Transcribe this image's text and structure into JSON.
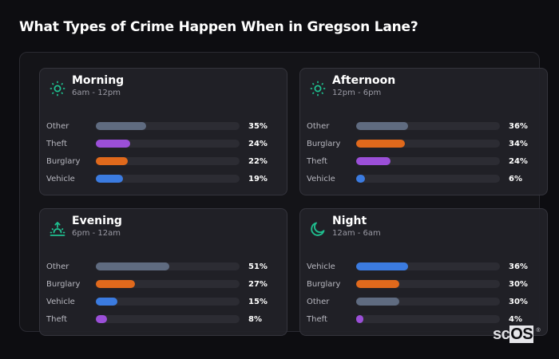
{
  "header": {
    "title": "What Types of Crime Happen When in Gregson Lane?"
  },
  "colors": {
    "other": "#5f6b80",
    "theft": "#9b4fd8",
    "burglary": "#e0691c",
    "vehicle": "#3b7be0",
    "icon_accent": "#1fbf8f",
    "track": "#2c2c33"
  },
  "cards": [
    {
      "title": "Morning",
      "subtitle": "6am - 12pm",
      "icon": "sun-icon",
      "rows": [
        {
          "label": "Other",
          "value": 35,
          "display": "35%",
          "color": "#5f6b80"
        },
        {
          "label": "Theft",
          "value": 24,
          "display": "24%",
          "color": "#9b4fd8"
        },
        {
          "label": "Burglary",
          "value": 22,
          "display": "22%",
          "color": "#e0691c"
        },
        {
          "label": "Vehicle",
          "value": 19,
          "display": "19%",
          "color": "#3b7be0"
        }
      ]
    },
    {
      "title": "Afternoon",
      "subtitle": "12pm - 6pm",
      "icon": "sun-icon",
      "rows": [
        {
          "label": "Other",
          "value": 36,
          "display": "36%",
          "color": "#5f6b80"
        },
        {
          "label": "Burglary",
          "value": 34,
          "display": "34%",
          "color": "#e0691c"
        },
        {
          "label": "Theft",
          "value": 24,
          "display": "24%",
          "color": "#9b4fd8"
        },
        {
          "label": "Vehicle",
          "value": 6,
          "display": "6%",
          "color": "#3b7be0"
        }
      ]
    },
    {
      "title": "Evening",
      "subtitle": "6pm - 12am",
      "icon": "sunset-icon",
      "rows": [
        {
          "label": "Other",
          "value": 51,
          "display": "51%",
          "color": "#5f6b80"
        },
        {
          "label": "Burglary",
          "value": 27,
          "display": "27%",
          "color": "#e0691c"
        },
        {
          "label": "Vehicle",
          "value": 15,
          "display": "15%",
          "color": "#3b7be0"
        },
        {
          "label": "Theft",
          "value": 8,
          "display": "8%",
          "color": "#9b4fd8"
        }
      ]
    },
    {
      "title": "Night",
      "subtitle": "12am - 6am",
      "icon": "moon-icon",
      "rows": [
        {
          "label": "Vehicle",
          "value": 36,
          "display": "36%",
          "color": "#3b7be0"
        },
        {
          "label": "Burglary",
          "value": 30,
          "display": "30%",
          "color": "#e0691c"
        },
        {
          "label": "Other",
          "value": 30,
          "display": "30%",
          "color": "#5f6b80"
        },
        {
          "label": "Theft",
          "value": 4,
          "display": "4%",
          "color": "#9b4fd8"
        }
      ]
    }
  ],
  "logo": {
    "prefix": "sc",
    "boxed": "OS",
    "mark": "®"
  },
  "chart_data": [
    {
      "type": "bar",
      "orientation": "horizontal",
      "title": "Morning",
      "subtitle": "6am - 12pm",
      "categories": [
        "Other",
        "Theft",
        "Burglary",
        "Vehicle"
      ],
      "values": [
        35,
        24,
        22,
        19
      ],
      "unit": "%",
      "xlim": [
        0,
        100
      ]
    },
    {
      "type": "bar",
      "orientation": "horizontal",
      "title": "Afternoon",
      "subtitle": "12pm - 6pm",
      "categories": [
        "Other",
        "Burglary",
        "Theft",
        "Vehicle"
      ],
      "values": [
        36,
        34,
        24,
        6
      ],
      "unit": "%",
      "xlim": [
        0,
        100
      ]
    },
    {
      "type": "bar",
      "orientation": "horizontal",
      "title": "Evening",
      "subtitle": "6pm - 12am",
      "categories": [
        "Other",
        "Burglary",
        "Vehicle",
        "Theft"
      ],
      "values": [
        51,
        27,
        15,
        8
      ],
      "unit": "%",
      "xlim": [
        0,
        100
      ]
    },
    {
      "type": "bar",
      "orientation": "horizontal",
      "title": "Night",
      "subtitle": "12am - 6am",
      "categories": [
        "Vehicle",
        "Burglary",
        "Other",
        "Theft"
      ],
      "values": [
        36,
        30,
        30,
        4
      ],
      "unit": "%",
      "xlim": [
        0,
        100
      ]
    }
  ]
}
